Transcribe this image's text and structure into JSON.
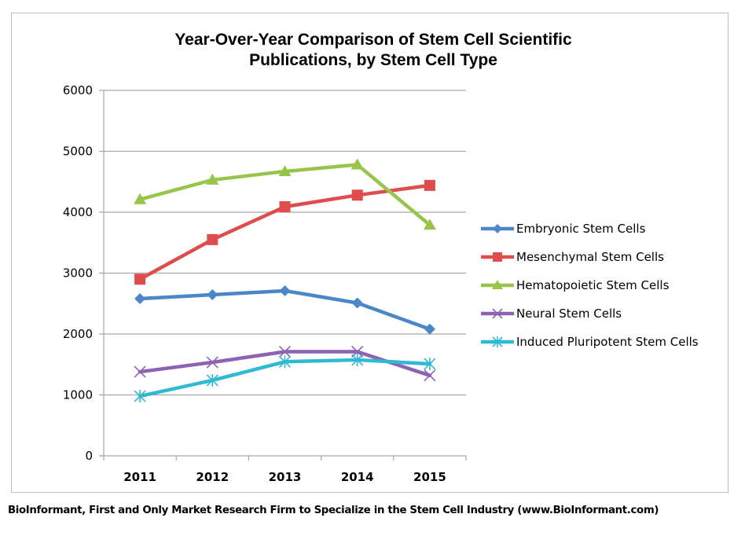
{
  "chart_data": {
    "type": "line",
    "title": "Year-Over-Year Comparison of Stem Cell Scientific Publications, by Stem Cell Type",
    "title_lines": [
      "Year-Over-Year Comparison of Stem Cell Scientific",
      "Publications, by Stem Cell Type"
    ],
    "xlabel": "",
    "ylabel": "",
    "categories": [
      "2011",
      "2012",
      "2013",
      "2014",
      "2015"
    ],
    "ylim": [
      0,
      6000
    ],
    "yticks": [
      0,
      1000,
      2000,
      3000,
      4000,
      5000,
      6000
    ],
    "grid": true,
    "legend_position": "right",
    "series": [
      {
        "name": "Embryonic Stem Cells",
        "color": "#4a86c8",
        "marker": "diamond",
        "values": [
          2580,
          2645,
          2710,
          2510,
          2080
        ]
      },
      {
        "name": "Mesenchymal Stem Cells",
        "color": "#e04b4b",
        "marker": "square",
        "values": [
          2900,
          3550,
          4090,
          4280,
          4440
        ]
      },
      {
        "name": "Hematopoietic Stem Cells",
        "color": "#98c44a",
        "marker": "triangle",
        "values": [
          4210,
          4530,
          4670,
          4780,
          3790
        ]
      },
      {
        "name": "Neural Stem Cells",
        "color": "#8e62b3",
        "marker": "x",
        "values": [
          1380,
          1535,
          1710,
          1710,
          1320
        ]
      },
      {
        "name": "Induced Pluripotent Stem Cells",
        "color": "#2fb9d3",
        "marker": "star",
        "values": [
          980,
          1240,
          1545,
          1575,
          1510
        ]
      }
    ]
  },
  "footer": {
    "text": "BioInformant, First and Only Market Research Firm to Specialize in the Stem Cell Industry (www.BioInformant.com)"
  }
}
